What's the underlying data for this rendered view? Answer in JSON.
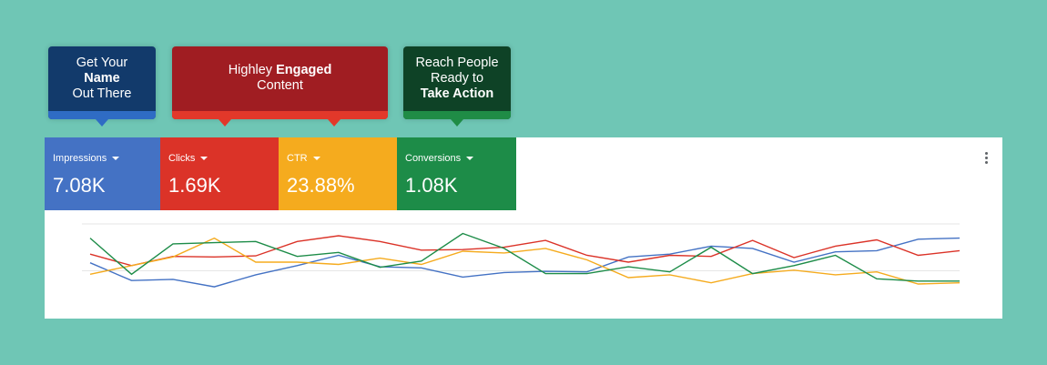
{
  "callouts": [
    {
      "line1": "Get Your",
      "bold": "Name",
      "line3": "Out There"
    },
    {
      "pre": "Highley ",
      "bold": "Engaged",
      "line2": "Content"
    },
    {
      "line1": "Reach People",
      "line2": "Ready to",
      "bold": "Take Action"
    }
  ],
  "tiles": [
    {
      "label": "Impressions",
      "value": "7.08K",
      "color": "#4472c4"
    },
    {
      "label": "Clicks",
      "value": "1.69K",
      "color": "#db3328"
    },
    {
      "label": "CTR",
      "value": "23.88%",
      "color": "#f5ab1e"
    },
    {
      "label": "Conversions",
      "value": "1.08K",
      "color": "#1d8c48"
    }
  ],
  "icons": {
    "menu": "more-vert-icon",
    "dropdown": "caret-down-icon"
  },
  "chart_data": {
    "type": "line",
    "grid": true,
    "ylim": [
      0,
      100
    ],
    "series": [
      {
        "color": "#4472c4",
        "values": [
          45,
          14,
          16,
          3,
          24,
          40,
          58,
          38,
          36,
          20,
          28,
          30,
          29,
          55,
          60,
          74,
          70,
          46,
          64,
          66,
          86,
          88
        ]
      },
      {
        "color": "#db3328",
        "values": [
          60,
          40,
          56,
          55,
          57,
          82,
          92,
          82,
          67,
          68,
          72,
          84,
          58,
          46,
          58,
          56,
          84,
          54,
          74,
          85,
          58,
          66
        ]
      },
      {
        "color": "#f5ab1e",
        "values": [
          25,
          40,
          55,
          88,
          46,
          46,
          42,
          53,
          42,
          65,
          62,
          70,
          50,
          19,
          24,
          10,
          26,
          32,
          24,
          29,
          8,
          10
        ]
      },
      {
        "color": "#1d8c48",
        "values": [
          88,
          25,
          78,
          80,
          82,
          56,
          63,
          37,
          48,
          96,
          70,
          26,
          26,
          38,
          29,
          72,
          26,
          40,
          58,
          17,
          13,
          13
        ]
      }
    ]
  }
}
